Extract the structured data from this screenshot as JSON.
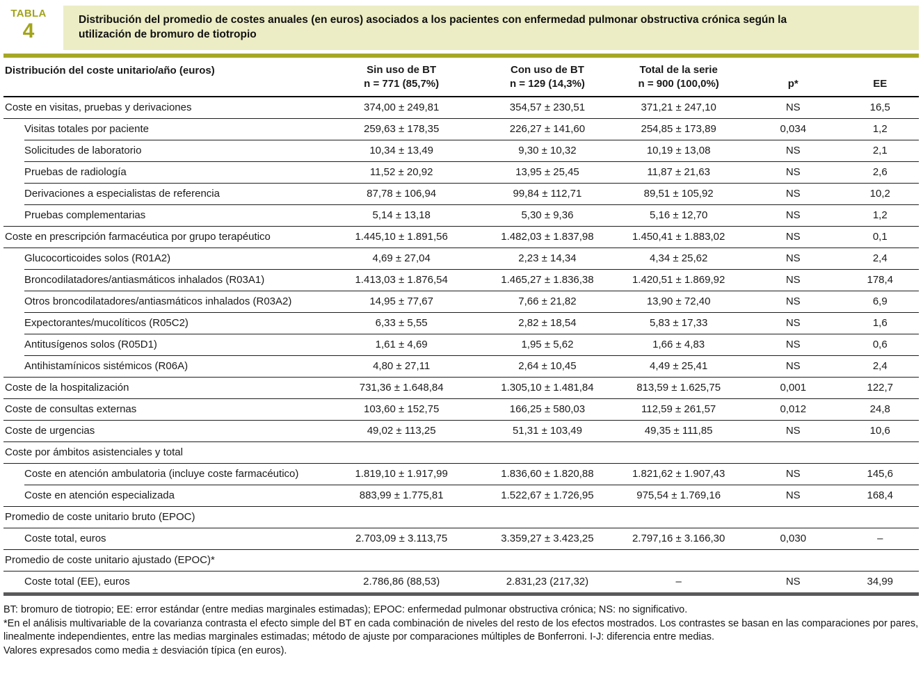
{
  "label": {
    "word": "TABLA",
    "number": "4"
  },
  "title": "Distribución del promedio de costes anuales (en euros) asociados a los pacientes con enfermedad pulmonar obstructiva crónica según la utilización de bromuro de tiotropio",
  "columns": {
    "label": "Distribución del coste unitario/año (euros)",
    "groups": [
      {
        "line1": "Sin uso de BT",
        "line2": "n = 771 (85,7%)"
      },
      {
        "line1": "Con uso de BT",
        "line2": "n = 129 (14,3%)"
      },
      {
        "line1": "Total de la serie",
        "line2": "n = 900 (100,0%)"
      }
    ],
    "p": "p*",
    "ee": "EE"
  },
  "rows": [
    {
      "label": "Coste en visitas, pruebas y derivaciones",
      "indent": false,
      "sin": "374,00 ± 249,81",
      "con": "354,57 ± 230,51",
      "total": "371,21 ± 247,10",
      "p": "NS",
      "ee": "16,5"
    },
    {
      "label": "Visitas totales por paciente",
      "indent": true,
      "sin": "259,63 ± 178,35",
      "con": "226,27 ± 141,60",
      "total": "254,85 ± 173,89",
      "p": "0,034",
      "ee": "1,2"
    },
    {
      "label": "Solicitudes de laboratorio",
      "indent": true,
      "sin": "10,34 ± 13,49",
      "con": "9,30 ± 10,32",
      "total": "10,19 ± 13,08",
      "p": "NS",
      "ee": "2,1"
    },
    {
      "label": "Pruebas de radiología",
      "indent": true,
      "sin": "11,52 ± 20,92",
      "con": "13,95 ± 25,45",
      "total": "11,87 ± 21,63",
      "p": "NS",
      "ee": "2,6"
    },
    {
      "label": "Derivaciones a especialistas de referencia",
      "indent": true,
      "sin": "87,78 ± 106,94",
      "con": "99,84 ± 112,71",
      "total": "89,51 ± 105,92",
      "p": "NS",
      "ee": "10,2"
    },
    {
      "label": "Pruebas complementarias",
      "indent": true,
      "sin": "5,14 ± 13,18",
      "con": "5,30 ± 9,36",
      "total": "5,16 ± 12,70",
      "p": "NS",
      "ee": "1,2"
    },
    {
      "label": "Coste en prescripción farmacéutica por grupo terapéutico",
      "indent": false,
      "sin": "1.445,10 ± 1.891,56",
      "con": "1.482,03 ± 1.837,98",
      "total": "1.450,41 ± 1.883,02",
      "p": "NS",
      "ee": "0,1"
    },
    {
      "label": "Glucocorticoides solos (R01A2)",
      "indent": true,
      "sin": "4,69 ± 27,04",
      "con": "2,23 ± 14,34",
      "total": "4,34 ± 25,62",
      "p": "NS",
      "ee": "2,4"
    },
    {
      "label": "Broncodilatadores/antiasmáticos inhalados (R03A1)",
      "indent": true,
      "sin": "1.413,03 ± 1.876,54",
      "con": "1.465,27 ± 1.836,38",
      "total": "1.420,51 ± 1.869,92",
      "p": "NS",
      "ee": "178,4"
    },
    {
      "label": "Otros broncodilatadores/antiasmáticos inhalados (R03A2)",
      "indent": true,
      "sin": "14,95 ± 77,67",
      "con": "7,66 ± 21,82",
      "total": "13,90 ± 72,40",
      "p": "NS",
      "ee": "6,9"
    },
    {
      "label": "Expectorantes/mucolíticos (R05C2)",
      "indent": true,
      "sin": "6,33 ± 5,55",
      "con": "2,82 ± 18,54",
      "total": "5,83 ± 17,33",
      "p": "NS",
      "ee": "1,6"
    },
    {
      "label": "Antitusígenos solos (R05D1)",
      "indent": true,
      "sin": "1,61 ± 4,69",
      "con": "1,95 ± 5,62",
      "total": "1,66 ± 4,83",
      "p": "NS",
      "ee": "0,6"
    },
    {
      "label": "Antihistamínicos sistémicos (R06A)",
      "indent": true,
      "sin": "4,80 ± 27,11",
      "con": "2,64 ± 10,45",
      "total": "4,49 ± 25,41",
      "p": "NS",
      "ee": "2,4"
    },
    {
      "label": "Coste de la hospitalización",
      "indent": false,
      "sin": "731,36 ± 1.648,84",
      "con": "1.305,10 ± 1.481,84",
      "total": "813,59 ± 1.625,75",
      "p": "0,001",
      "ee": "122,7"
    },
    {
      "label": "Coste de consultas externas",
      "indent": false,
      "sin": "103,60 ± 152,75",
      "con": "166,25 ± 580,03",
      "total": "112,59 ± 261,57",
      "p": "0,012",
      "ee": "24,8"
    },
    {
      "label": "Coste de urgencias",
      "indent": false,
      "sin": "49,02 ± 113,25",
      "con": "51,31 ± 103,49",
      "total": "49,35 ± 111,85",
      "p": "NS",
      "ee": "10,6"
    },
    {
      "label": "Coste por ámbitos asistenciales y total",
      "indent": false,
      "sin": "",
      "con": "",
      "total": "",
      "p": "",
      "ee": ""
    },
    {
      "label": "Coste en atención ambulatoria (incluye coste farmacéutico)",
      "indent": true,
      "sin": "1.819,10 ± 1.917,99",
      "con": "1.836,60 ± 1.820,88",
      "total": "1.821,62 ± 1.907,43",
      "p": "NS",
      "ee": "145,6"
    },
    {
      "label": "Coste en atención especializada",
      "indent": true,
      "sin": "883,99 ± 1.775,81",
      "con": "1.522,67 ± 1.726,95",
      "total": "975,54 ± 1.769,16",
      "p": "NS",
      "ee": "168,4"
    },
    {
      "label": "Promedio de coste unitario bruto (EPOC)",
      "indent": false,
      "sin": "",
      "con": "",
      "total": "",
      "p": "",
      "ee": ""
    },
    {
      "label": "Coste total, euros",
      "indent": true,
      "sin": "2.703,09 ± 3.113,75",
      "con": "3.359,27 ± 3.423,25",
      "total": "2.797,16 ± 3.166,30",
      "p": "0,030",
      "ee": "–"
    },
    {
      "label": "Promedio de coste unitario ajustado (EPOC)*",
      "indent": false,
      "sin": "",
      "con": "",
      "total": "",
      "p": "",
      "ee": ""
    },
    {
      "label": "Coste total (EE), euros",
      "indent": true,
      "sin": "2.786,86 (88,53)",
      "con": "2.831,23 (217,32)",
      "total": "–",
      "p": "NS",
      "ee": "34,99"
    }
  ],
  "footnotes": [
    "BT: bromuro de tiotropio; EE: error estándar (entre medias marginales estimadas); EPOC: enfermedad pulmonar obstructiva crónica; NS: no significativo.",
    "*En el análisis multivariable de la covarianza contrasta el efecto simple del BT en cada combinación de niveles del resto de los efectos mostrados. Los contrastes se basan en las comparaciones por pares, linealmente independientes, entre las medias marginales estimadas; método de ajuste por comparaciones múltiples de Bonferroni. I-J: diferencia entre medias.",
    "Valores expresados como media ± desviación típica (en euros)."
  ],
  "colors": {
    "olive_accent": "#A6A825",
    "banner_background": "#ECEDC5",
    "bottom_rule_gray": "#59595B",
    "text": "#1A1A1A"
  }
}
